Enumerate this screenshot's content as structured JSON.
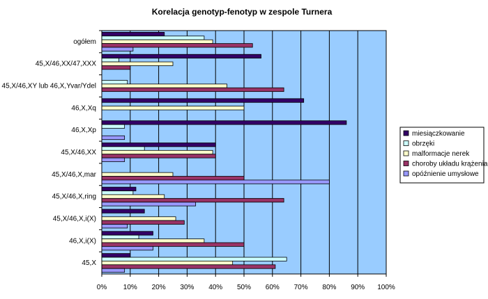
{
  "chart_data": {
    "type": "bar",
    "orientation": "horizontal",
    "title": "Korelacja genotyp-fenotyp w zespole Turnera",
    "xlim": [
      0,
      100
    ],
    "x_ticks": [
      "0%",
      "10%",
      "20%",
      "30%",
      "40%",
      "50%",
      "60%",
      "70%",
      "80%",
      "90%",
      "100%"
    ],
    "grid": true,
    "legend_position": "right",
    "categories": [
      "ogółem",
      "45,X/46,XX/47,XXX",
      "45,X/46,XY lub 46,X,Yvar/Ydel",
      "46,X,Xq",
      "46,X,Xp",
      "45,X/46,XX",
      "45,X/46,X,mar",
      "45,X/46,X,ring",
      "45,X/46,X,i(X)",
      "46,X,i(X)",
      "45,X"
    ],
    "series": [
      {
        "name": "miesiączkowanie",
        "color": "#330066",
        "values": [
          22,
          56,
          0,
          71,
          86,
          40,
          0,
          12,
          15,
          18,
          10
        ]
      },
      {
        "name": "obrzęki",
        "color": "#ccffff",
        "values": [
          36,
          6,
          9,
          0,
          8,
          15,
          0,
          11,
          0,
          13,
          65
        ]
      },
      {
        "name": "malformacje nerek",
        "color": "#ffffcc",
        "values": [
          39,
          25,
          44,
          50,
          0,
          39,
          25,
          22,
          26,
          36,
          46
        ]
      },
      {
        "name": "choroby układu krążenia",
        "color": "#993366",
        "values": [
          53,
          10,
          64,
          0,
          0,
          40,
          50,
          64,
          29,
          50,
          61
        ]
      },
      {
        "name": "opóźnienie umysłowe",
        "color": "#9999ff",
        "values": [
          11,
          0,
          0,
          0,
          8,
          8,
          80,
          33,
          9,
          18,
          8
        ]
      }
    ]
  }
}
